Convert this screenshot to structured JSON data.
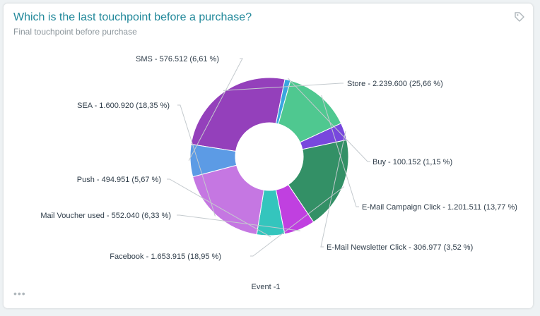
{
  "card": {
    "title": "Which is the last touchpoint before a purchase?",
    "subtitle": "Final touchpoint before purchase",
    "tag_icon": "tag-icon",
    "menu_icon": "more-horizontal-icon",
    "menu_glyph": "•••"
  },
  "chart_data": {
    "type": "pie",
    "donut": true,
    "xlabel": "Event -1",
    "slices": [
      {
        "name": "Store",
        "value": 2239600,
        "label": "Store - 2.239.600 (25,66 %)",
        "color": "#9440bb"
      },
      {
        "name": "Buy",
        "value": 100152,
        "label": "Buy - 100.152 (1,15 %)",
        "color": "#3aa7df"
      },
      {
        "name": "E-Mail Campaign Click",
        "value": 1201511,
        "label": "E-Mail Campaign Click - 1.201.511 (13,77 %)",
        "color": "#4fc890"
      },
      {
        "name": "E-Mail Newsletter Click",
        "value": 306977,
        "label": "E-Mail Newsletter Click - 306.977 (3,52 %)",
        "color": "#7848dd"
      },
      {
        "name": "Facebook",
        "value": 1653915,
        "label": "Facebook - 1.653.915 (18,95 %)",
        "color": "#339066"
      },
      {
        "name": "Mail Voucher used",
        "value": 552040,
        "label": "Mail Voucher used - 552.040 (6,33 %)",
        "color": "#c040e0"
      },
      {
        "name": "Push",
        "value": 494951,
        "label": "Push - 494.951 (5,67 %)",
        "color": "#34c5bd"
      },
      {
        "name": "SEA",
        "value": 1600920,
        "label": "SEA - 1.600.920 (18,35 %)",
        "color": "#c577e2"
      },
      {
        "name": "SMS",
        "value": 576512,
        "label": "SMS - 576.512 (6,61 %)",
        "color": "#5c9be5"
      }
    ]
  }
}
